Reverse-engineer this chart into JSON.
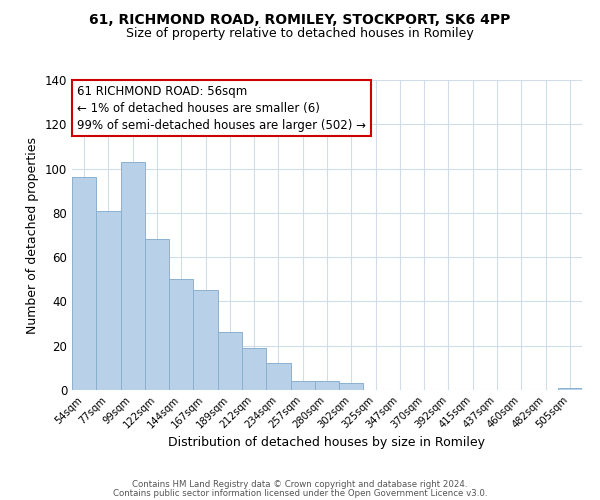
{
  "title": "61, RICHMOND ROAD, ROMILEY, STOCKPORT, SK6 4PP",
  "subtitle": "Size of property relative to detached houses in Romiley",
  "xlabel": "Distribution of detached houses by size in Romiley",
  "ylabel": "Number of detached properties",
  "bar_color": "#b8d0e8",
  "bar_edge_color": "#8ab0d0",
  "categories": [
    "54sqm",
    "77sqm",
    "99sqm",
    "122sqm",
    "144sqm",
    "167sqm",
    "189sqm",
    "212sqm",
    "234sqm",
    "257sqm",
    "280sqm",
    "302sqm",
    "325sqm",
    "347sqm",
    "370sqm",
    "392sqm",
    "415sqm",
    "437sqm",
    "460sqm",
    "482sqm",
    "505sqm"
  ],
  "values": [
    96,
    81,
    103,
    68,
    50,
    45,
    26,
    19,
    12,
    4,
    4,
    3,
    0,
    0,
    0,
    0,
    0,
    0,
    0,
    0,
    1
  ],
  "ylim": [
    0,
    140
  ],
  "yticks": [
    0,
    20,
    40,
    60,
    80,
    100,
    120,
    140
  ],
  "annotation_text": "61 RICHMOND ROAD: 56sqm\n← 1% of detached houses are smaller (6)\n99% of semi-detached houses are larger (502) →",
  "annotation_box_color": "#ffffff",
  "annotation_box_edge_color": "#cc0000",
  "footer_line1": "Contains HM Land Registry data © Crown copyright and database right 2024.",
  "footer_line2": "Contains public sector information licensed under the Open Government Licence v3.0.",
  "background_color": "#ffffff",
  "grid_color": "#d0dce8"
}
